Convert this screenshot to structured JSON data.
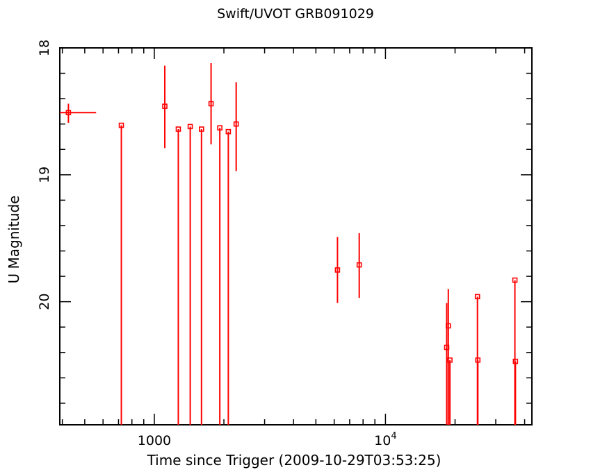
{
  "chart_data": {
    "type": "scatter",
    "title": "Swift/UVOT GRB091029",
    "xlabel": "Time since Trigger (2009-10-29T03:53:25)",
    "ylabel": "U Magnitude",
    "xscale": "log",
    "yaxis_inverted": true,
    "xlim": [
      390,
      43000
    ],
    "ylim": [
      18.0,
      20.97
    ],
    "x_tick_labels": [
      {
        "value": 1000,
        "base": "1000",
        "exp": ""
      },
      {
        "value": 10000,
        "base": "10",
        "exp": "4"
      }
    ],
    "y_tick_labels": [
      "18",
      "19",
      "20"
    ],
    "y_major_ticks": [
      18,
      19,
      20
    ],
    "grid": false,
    "color": "#ff0000",
    "series": [
      {
        "points": [
          {
            "x": 425,
            "y": 18.51,
            "xerr": [
              390,
              560
            ],
            "yerr": [
              18.44,
              18.59
            ]
          },
          {
            "x": 720,
            "y": 18.61,
            "yerr": [
              18.61,
              20.97
            ]
          },
          {
            "x": 1110,
            "y": 18.46,
            "yerr": [
              18.14,
              18.79
            ]
          },
          {
            "x": 1270,
            "y": 18.64,
            "yerr": [
              18.64,
              20.97
            ]
          },
          {
            "x": 1430,
            "y": 18.62,
            "yerr": [
              18.62,
              20.97
            ]
          },
          {
            "x": 1600,
            "y": 18.64,
            "yerr": [
              18.64,
              20.97
            ]
          },
          {
            "x": 1760,
            "y": 18.44,
            "yerr": [
              18.12,
              18.76
            ]
          },
          {
            "x": 1920,
            "y": 18.63,
            "yerr": [
              18.63,
              20.97
            ]
          },
          {
            "x": 2090,
            "y": 18.66,
            "yerr": [
              18.66,
              20.97
            ]
          },
          {
            "x": 2260,
            "y": 18.6,
            "yerr": [
              18.27,
              18.97
            ]
          },
          {
            "x": 6200,
            "y": 19.75,
            "yerr": [
              19.49,
              20.01
            ]
          },
          {
            "x": 7700,
            "y": 19.71,
            "yerr": [
              19.46,
              19.97
            ]
          },
          {
            "x": 18400,
            "y": 20.36,
            "yerr": [
              20.01,
              20.97
            ]
          },
          {
            "x": 18700,
            "y": 20.19,
            "yerr": [
              19.9,
              20.97
            ]
          },
          {
            "x": 19000,
            "y": 20.46,
            "yerr": [
              20.46,
              20.97
            ]
          },
          {
            "x": 25000,
            "y": 19.96,
            "yerr": [
              19.96,
              20.97
            ]
          },
          {
            "x": 25100,
            "y": 20.46,
            "yerr": [
              20.46,
              20.97
            ]
          },
          {
            "x": 36300,
            "y": 19.83,
            "yerr": [
              19.83,
              20.97
            ]
          },
          {
            "x": 36500,
            "y": 20.47,
            "yerr": [
              20.47,
              20.97
            ]
          }
        ]
      }
    ]
  }
}
